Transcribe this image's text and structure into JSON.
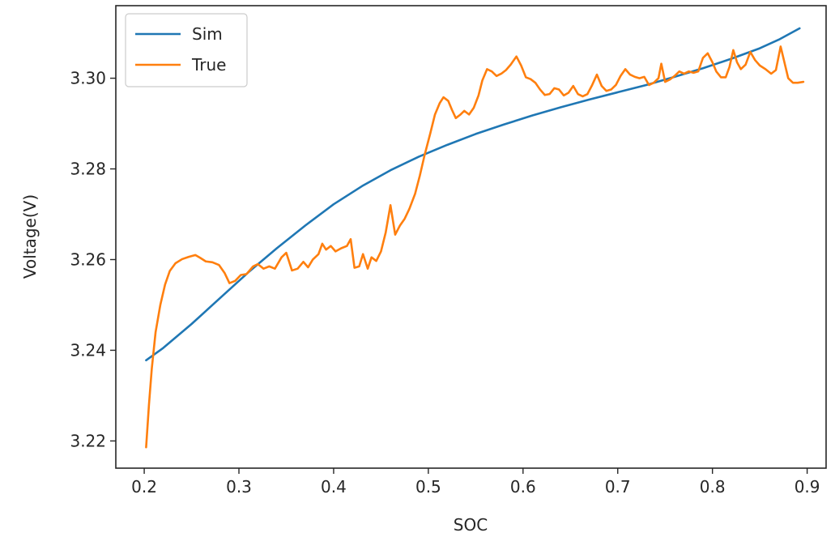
{
  "chart_data": {
    "type": "line",
    "title": "",
    "xlabel": "SOC",
    "ylabel": "Voltage(V)",
    "xlim": [
      0.17,
      0.92
    ],
    "ylim": [
      3.214,
      3.316
    ],
    "xticks": [
      0.2,
      0.3,
      0.4,
      0.5,
      0.6,
      0.7,
      0.8,
      0.9
    ],
    "xtick_labels": [
      "0.2",
      "0.3",
      "0.4",
      "0.5",
      "0.6",
      "0.7",
      "0.8",
      "0.9"
    ],
    "yticks": [
      3.22,
      3.24,
      3.26,
      3.28,
      3.3
    ],
    "ytick_labels": [
      "3.22",
      "3.24",
      "3.26",
      "3.28",
      "3.30"
    ],
    "grid": false,
    "legend_position": "top-left",
    "series": [
      {
        "name": "Sim",
        "color": "#1f77b4",
        "points": [
          [
            0.202,
            3.2378
          ],
          [
            0.22,
            3.2405
          ],
          [
            0.25,
            3.2458
          ],
          [
            0.28,
            3.2515
          ],
          [
            0.31,
            3.2572
          ],
          [
            0.34,
            3.2625
          ],
          [
            0.37,
            3.2675
          ],
          [
            0.4,
            3.2722
          ],
          [
            0.43,
            3.2762
          ],
          [
            0.46,
            3.2797
          ],
          [
            0.49,
            3.2827
          ],
          [
            0.52,
            3.2853
          ],
          [
            0.55,
            3.2877
          ],
          [
            0.58,
            3.2898
          ],
          [
            0.61,
            3.2918
          ],
          [
            0.64,
            3.2936
          ],
          [
            0.67,
            3.2953
          ],
          [
            0.7,
            3.2969
          ],
          [
            0.73,
            3.2985
          ],
          [
            0.76,
            3.3003
          ],
          [
            0.79,
            3.3022
          ],
          [
            0.82,
            3.3043
          ],
          [
            0.85,
            3.3066
          ],
          [
            0.87,
            3.3085
          ],
          [
            0.892,
            3.311
          ]
        ]
      },
      {
        "name": "True",
        "color": "#ff7f0e",
        "points": [
          [
            0.202,
            3.2186
          ],
          [
            0.205,
            3.228
          ],
          [
            0.208,
            3.236
          ],
          [
            0.212,
            3.244
          ],
          [
            0.217,
            3.25
          ],
          [
            0.222,
            3.2545
          ],
          [
            0.227,
            3.2575
          ],
          [
            0.233,
            3.2592
          ],
          [
            0.24,
            3.2601
          ],
          [
            0.247,
            3.2606
          ],
          [
            0.254,
            3.261
          ],
          [
            0.259,
            3.2604
          ],
          [
            0.265,
            3.2596
          ],
          [
            0.272,
            3.2594
          ],
          [
            0.279,
            3.2588
          ],
          [
            0.285,
            3.257
          ],
          [
            0.29,
            3.2548
          ],
          [
            0.296,
            3.2553
          ],
          [
            0.302,
            3.2566
          ],
          [
            0.308,
            3.2568
          ],
          [
            0.315,
            3.2585
          ],
          [
            0.32,
            3.259
          ],
          [
            0.326,
            3.258
          ],
          [
            0.332,
            3.2585
          ],
          [
            0.338,
            3.258
          ],
          [
            0.345,
            3.2605
          ],
          [
            0.35,
            3.2615
          ],
          [
            0.356,
            3.2576
          ],
          [
            0.362,
            3.258
          ],
          [
            0.368,
            3.2595
          ],
          [
            0.373,
            3.2583
          ],
          [
            0.378,
            3.26
          ],
          [
            0.384,
            3.2612
          ],
          [
            0.388,
            3.2635
          ],
          [
            0.392,
            3.2622
          ],
          [
            0.397,
            3.263
          ],
          [
            0.402,
            3.2618
          ],
          [
            0.408,
            3.2625
          ],
          [
            0.414,
            3.263
          ],
          [
            0.418,
            3.2645
          ],
          [
            0.422,
            3.2582
          ],
          [
            0.427,
            3.2585
          ],
          [
            0.431,
            3.2612
          ],
          [
            0.436,
            3.258
          ],
          [
            0.44,
            3.2605
          ],
          [
            0.445,
            3.2597
          ],
          [
            0.45,
            3.2618
          ],
          [
            0.455,
            3.266
          ],
          [
            0.46,
            3.272
          ],
          [
            0.465,
            3.2655
          ],
          [
            0.47,
            3.2675
          ],
          [
            0.475,
            3.269
          ],
          [
            0.48,
            3.2712
          ],
          [
            0.486,
            3.2745
          ],
          [
            0.491,
            3.2785
          ],
          [
            0.496,
            3.283
          ],
          [
            0.502,
            3.2878
          ],
          [
            0.507,
            3.292
          ],
          [
            0.512,
            3.2945
          ],
          [
            0.516,
            3.2958
          ],
          [
            0.521,
            3.295
          ],
          [
            0.525,
            3.293
          ],
          [
            0.529,
            3.2912
          ],
          [
            0.534,
            3.292
          ],
          [
            0.538,
            3.2928
          ],
          [
            0.543,
            3.292
          ],
          [
            0.548,
            3.2935
          ],
          [
            0.553,
            3.2962
          ],
          [
            0.557,
            3.2995
          ],
          [
            0.562,
            3.302
          ],
          [
            0.567,
            3.3015
          ],
          [
            0.572,
            3.3005
          ],
          [
            0.577,
            3.301
          ],
          [
            0.582,
            3.3018
          ],
          [
            0.587,
            3.303
          ],
          [
            0.593,
            3.3048
          ],
          [
            0.598,
            3.3028
          ],
          [
            0.603,
            3.3002
          ],
          [
            0.608,
            3.2998
          ],
          [
            0.613,
            3.299
          ],
          [
            0.618,
            3.2975
          ],
          [
            0.623,
            3.2963
          ],
          [
            0.628,
            3.2965
          ],
          [
            0.633,
            3.2978
          ],
          [
            0.638,
            3.2975
          ],
          [
            0.643,
            3.2962
          ],
          [
            0.648,
            3.2968
          ],
          [
            0.653,
            3.2983
          ],
          [
            0.658,
            3.2965
          ],
          [
            0.663,
            3.296
          ],
          [
            0.668,
            3.2965
          ],
          [
            0.673,
            3.2985
          ],
          [
            0.678,
            3.3008
          ],
          [
            0.683,
            3.2983
          ],
          [
            0.688,
            3.2972
          ],
          [
            0.693,
            3.2975
          ],
          [
            0.698,
            3.2985
          ],
          [
            0.703,
            3.3005
          ],
          [
            0.708,
            3.302
          ],
          [
            0.713,
            3.3008
          ],
          [
            0.718,
            3.3003
          ],
          [
            0.723,
            3.3
          ],
          [
            0.728,
            3.3003
          ],
          [
            0.733,
            3.2985
          ],
          [
            0.738,
            3.299
          ],
          [
            0.743,
            3.3
          ],
          [
            0.746,
            3.3032
          ],
          [
            0.75,
            3.2992
          ],
          [
            0.755,
            3.2997
          ],
          [
            0.76,
            3.3005
          ],
          [
            0.765,
            3.3015
          ],
          [
            0.77,
            3.301
          ],
          [
            0.775,
            3.3015
          ],
          [
            0.78,
            3.3012
          ],
          [
            0.785,
            3.3015
          ],
          [
            0.79,
            3.3045
          ],
          [
            0.795,
            3.3055
          ],
          [
            0.8,
            3.3035
          ],
          [
            0.804,
            3.3015
          ],
          [
            0.809,
            3.3002
          ],
          [
            0.814,
            3.3002
          ],
          [
            0.818,
            3.3025
          ],
          [
            0.822,
            3.3062
          ],
          [
            0.826,
            3.3035
          ],
          [
            0.83,
            3.302
          ],
          [
            0.835,
            3.303
          ],
          [
            0.84,
            3.3058
          ],
          [
            0.845,
            3.304
          ],
          [
            0.85,
            3.3028
          ],
          [
            0.856,
            3.302
          ],
          [
            0.862,
            3.301
          ],
          [
            0.867,
            3.3018
          ],
          [
            0.872,
            3.307
          ],
          [
            0.876,
            3.3035
          ],
          [
            0.88,
            3.3
          ],
          [
            0.885,
            3.299
          ],
          [
            0.89,
            3.299
          ],
          [
            0.896,
            3.2992
          ]
        ]
      }
    ]
  }
}
